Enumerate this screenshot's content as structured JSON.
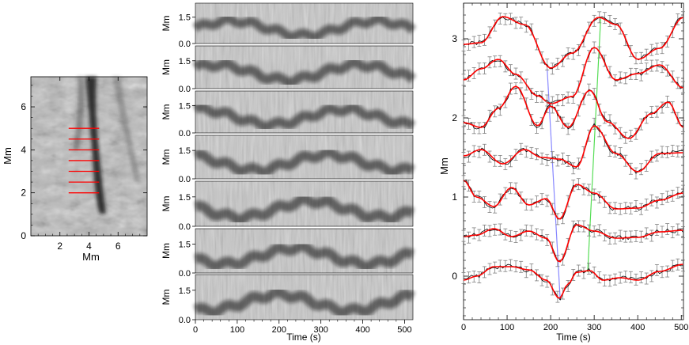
{
  "chart_data": [
    {
      "type": "image",
      "panel": "left-image",
      "xlabel": "Mm",
      "ylabel": "Mm",
      "xlim": [
        0,
        8
      ],
      "ylim": [
        0,
        7.4
      ],
      "xticks": [
        "2",
        "4",
        "6"
      ],
      "yticks": [
        "0",
        "2",
        "4",
        "6"
      ],
      "slit_color": "#ff0000",
      "slits": [
        {
          "y": 5.0,
          "x0": 2.6,
          "x1": 4.7
        },
        {
          "y": 4.5,
          "x0": 2.6,
          "x1": 4.7
        },
        {
          "y": 4.0,
          "x0": 2.6,
          "x1": 4.7
        },
        {
          "y": 3.5,
          "x0": 2.6,
          "x1": 4.7
        },
        {
          "y": 3.0,
          "x0": 2.6,
          "x1": 4.7
        },
        {
          "y": 2.5,
          "x0": 2.6,
          "x1": 4.7
        },
        {
          "y": 2.0,
          "x0": 2.6,
          "x1": 4.7
        }
      ]
    },
    {
      "type": "heatmap",
      "panel": "time-distance-stack",
      "panel_count": 7,
      "ylabel": "Mm",
      "xlabel": "Time (s)",
      "xlim": [
        0,
        520
      ],
      "ylim": [
        0,
        2.3
      ],
      "xticks": [
        "0",
        "100",
        "200",
        "300",
        "400",
        "500"
      ],
      "yticks": [
        "0.0",
        "1.5"
      ]
    },
    {
      "type": "line",
      "panel": "oscillation-fits",
      "xlabel": "Time (s)",
      "ylabel": "Mm",
      "xlim": [
        0,
        505
      ],
      "ylim": [
        -0.55,
        3.45
      ],
      "xticks": [
        "0",
        "100",
        "200",
        "300",
        "400",
        "500"
      ],
      "yticks": [
        "0",
        "1",
        "2",
        "3"
      ],
      "data_color": "#000000",
      "errorbar_color": "#808080",
      "fit_color": "#ff0000",
      "series": [
        {
          "offset": 3.0,
          "x": [
            0,
            40,
            90,
            140,
            200,
            250,
            310,
            350,
            400,
            450,
            505
          ],
          "y": [
            2.93,
            2.95,
            3.28,
            3.18,
            2.63,
            2.82,
            3.27,
            3.18,
            2.74,
            2.88,
            3.27
          ]
        },
        {
          "offset": 2.5,
          "x": [
            0,
            40,
            80,
            120,
            170,
            200,
            250,
            300,
            350,
            400,
            450,
            505
          ],
          "y": [
            2.48,
            2.62,
            2.74,
            2.55,
            2.28,
            2.18,
            2.27,
            2.89,
            2.48,
            2.56,
            2.67,
            2.38
          ]
        },
        {
          "offset": 2.0,
          "x": [
            0,
            40,
            80,
            120,
            170,
            200,
            240,
            290,
            330,
            380,
            430,
            470,
            505
          ],
          "y": [
            1.94,
            1.88,
            2.12,
            2.4,
            1.9,
            2.15,
            1.88,
            2.35,
            1.95,
            1.74,
            2.05,
            2.2,
            1.88
          ]
        },
        {
          "offset": 1.5,
          "x": [
            0,
            40,
            90,
            140,
            180,
            220,
            260,
            300,
            350,
            400,
            450,
            505
          ],
          "y": [
            1.52,
            1.6,
            1.42,
            1.6,
            1.5,
            1.48,
            1.38,
            1.9,
            1.55,
            1.32,
            1.55,
            1.56
          ]
        },
        {
          "offset": 1.0,
          "x": [
            0,
            30,
            70,
            110,
            150,
            190,
            220,
            260,
            300,
            350,
            400,
            450,
            505
          ],
          "y": [
            1.21,
            1.0,
            0.88,
            1.12,
            0.9,
            0.98,
            0.72,
            1.16,
            1.05,
            0.85,
            0.86,
            0.96,
            1.05
          ]
        },
        {
          "offset": 0.5,
          "x": [
            0,
            30,
            70,
            110,
            150,
            190,
            220,
            260,
            300,
            350,
            400,
            450,
            505
          ],
          "y": [
            0.5,
            0.52,
            0.6,
            0.5,
            0.57,
            0.48,
            0.18,
            0.65,
            0.57,
            0.48,
            0.49,
            0.56,
            0.58
          ]
        },
        {
          "offset": 0.0,
          "x": [
            0,
            30,
            70,
            110,
            150,
            190,
            220,
            240,
            260,
            290,
            320,
            360,
            400,
            450,
            505
          ],
          "y": [
            -0.05,
            0.0,
            0.12,
            0.12,
            0.08,
            -0.05,
            -0.28,
            -0.1,
            0.05,
            0.07,
            -0.05,
            -0.02,
            -0.05,
            0.06,
            0.15
          ]
        }
      ],
      "guide_lines": [
        {
          "color": "#8888ff",
          "x": [
            192,
            222
          ],
          "y": [
            2.62,
            -0.3
          ]
        },
        {
          "color": "#55dd55",
          "x": [
            315,
            285
          ],
          "y": [
            3.27,
            0.05
          ]
        }
      ]
    }
  ]
}
